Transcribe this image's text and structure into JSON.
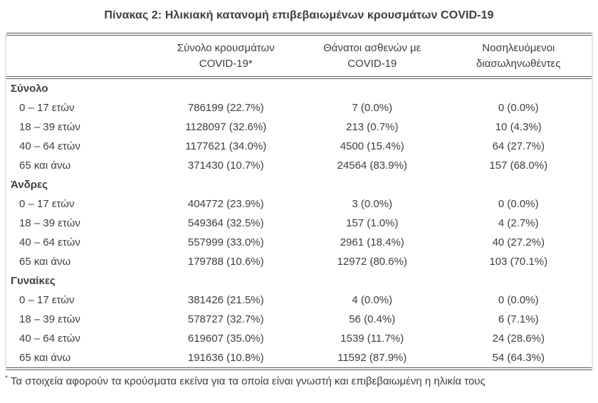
{
  "title": "Πίνακας 2: Ηλικιακή κατανομή επιβεβαιωμένων κρουσμάτων COVID-19",
  "table": {
    "columns": [
      "",
      "Σύνολο κρουσμάτων\nCOVID-19*",
      "Θάνατοι ασθενών με\nCOVID-19",
      "Νοσηλευόμενοι\nδιασωληνωθέντες"
    ],
    "sections": [
      {
        "name": "Σύνολο",
        "rows": [
          {
            "label": "0 – 17 ετών",
            "cases": "786199 (22.7%)",
            "deaths": "7 (0.0%)",
            "intubated": "0 (0.0%)"
          },
          {
            "label": "18 – 39 ετών",
            "cases": "1128097 (32.6%)",
            "deaths": "213 (0.7%)",
            "intubated": "10 (4.3%)"
          },
          {
            "label": "40 – 64 ετών",
            "cases": "1177621 (34.0%)",
            "deaths": "4500 (15.4%)",
            "intubated": "64 (27.7%)"
          },
          {
            "label": "65 και άνω",
            "cases": "371430 (10.7%)",
            "deaths": "24564 (83.9%)",
            "intubated": "157 (68.0%)"
          }
        ]
      },
      {
        "name": "Άνδρες",
        "rows": [
          {
            "label": "0 – 17 ετών",
            "cases": "404772 (23.9%)",
            "deaths": "3 (0.0%)",
            "intubated": "0 (0.0%)"
          },
          {
            "label": "18 – 39 ετών",
            "cases": "549364 (32.5%)",
            "deaths": "157 (1.0%)",
            "intubated": "4 (2.7%)"
          },
          {
            "label": "40 – 64 ετών",
            "cases": "557999 (33.0%)",
            "deaths": "2961 (18.4%)",
            "intubated": "40 (27.2%)"
          },
          {
            "label": "65 και άνω",
            "cases": "179788 (10.6%)",
            "deaths": "12972 (80.6%)",
            "intubated": "103 (70.1%)"
          }
        ]
      },
      {
        "name": "Γυναίκες",
        "rows": [
          {
            "label": "0 – 17 ετών",
            "cases": "381426 (21.5%)",
            "deaths": "4 (0.0%)",
            "intubated": "0 (0.0%)"
          },
          {
            "label": "18 – 39 ετών",
            "cases": "578727 (32.7%)",
            "deaths": "56 (0.4%)",
            "intubated": "6 (7.1%)"
          },
          {
            "label": "40 – 64 ετών",
            "cases": "619607 (35.0%)",
            "deaths": "1539 (11.7%)",
            "intubated": "24 (28.6%)"
          },
          {
            "label": "65 και άνω",
            "cases": "191636 (10.8%)",
            "deaths": "11592 (87.9%)",
            "intubated": "54 (64.3%)"
          }
        ]
      }
    ]
  },
  "footnote": {
    "marker": "*",
    "text": "Τα στοιχεία αφορούν τα κρούσματα εκείνα για τα οποία είναι γνωστή και επιβεβαιωμένη η ηλικία τους"
  },
  "colors": {
    "text": "#3b3e43",
    "rule": "#55575b",
    "frame_edge": "#e5e5e5"
  }
}
